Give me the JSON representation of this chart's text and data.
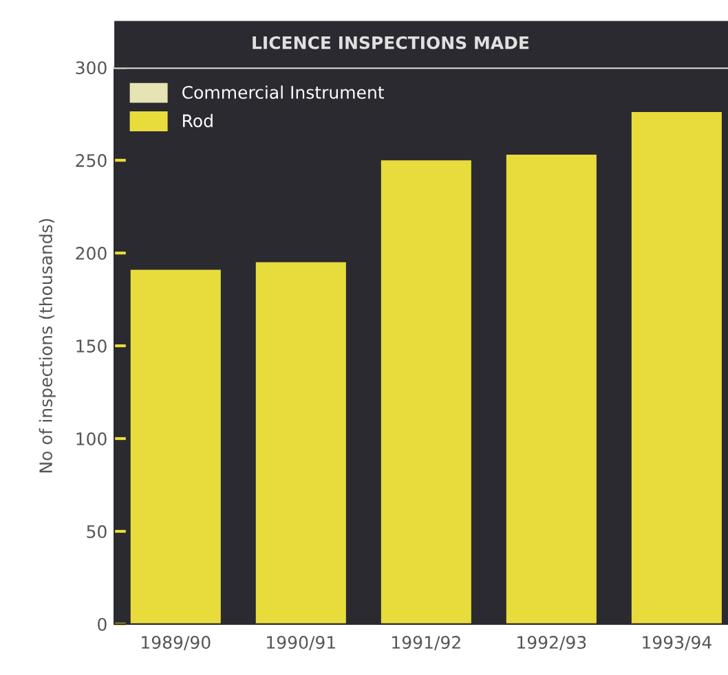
{
  "chart_data": {
    "type": "bar",
    "title": "LICENCE INSPECTIONS MADE",
    "ylabel": "No of inspections (thousands)",
    "categories": [
      "1989/90",
      "1990/91",
      "1991/92",
      "1992/93",
      "1993/94"
    ],
    "series": [
      {
        "name": "Rod",
        "color": "#e8dc3c",
        "values": [
          191,
          195,
          250,
          253,
          276
        ]
      },
      {
        "name": "Commercial Instrument",
        "color": "#e6e3b4",
        "values": [
          null,
          null,
          null,
          null,
          null
        ]
      }
    ],
    "ylim": [
      0,
      300
    ],
    "yticks": [
      0,
      50,
      100,
      150,
      200,
      250,
      300
    ],
    "grid": false,
    "legend": "top left"
  }
}
